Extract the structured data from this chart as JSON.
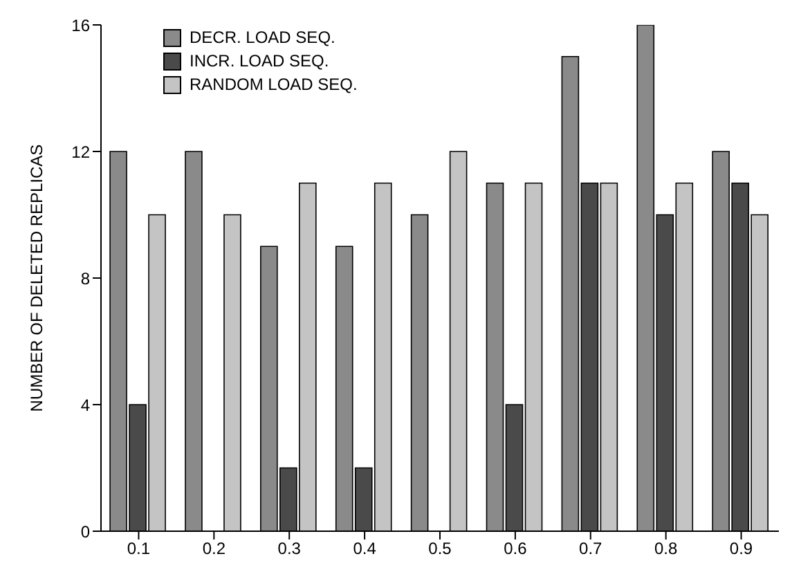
{
  "chart_data": {
    "type": "bar",
    "ylabel": "NUMBER OF DELETED REPLICAS",
    "categories": [
      "0.1",
      "0.2",
      "0.3",
      "0.4",
      "0.5",
      "0.6",
      "0.7",
      "0.8",
      "0.9"
    ],
    "series": [
      {
        "name": "DECR. LOAD SEQ.",
        "color": "#8a8a8a",
        "values": [
          12,
          12,
          9,
          9,
          10,
          11,
          15,
          16,
          12
        ]
      },
      {
        "name": "INCR. LOAD SEQ.",
        "color": "#4a4a4a",
        "values": [
          4,
          0,
          2,
          2,
          0,
          4,
          11,
          10,
          11
        ]
      },
      {
        "name": "RANDOM LOAD SEQ.",
        "color": "#c4c4c4",
        "values": [
          10,
          10,
          11,
          11,
          12,
          11,
          11,
          11,
          10
        ]
      }
    ],
    "ylim": [
      0,
      16
    ],
    "yticks": [
      0,
      4,
      8,
      12,
      16
    ],
    "grid": false,
    "legend": "top left"
  }
}
